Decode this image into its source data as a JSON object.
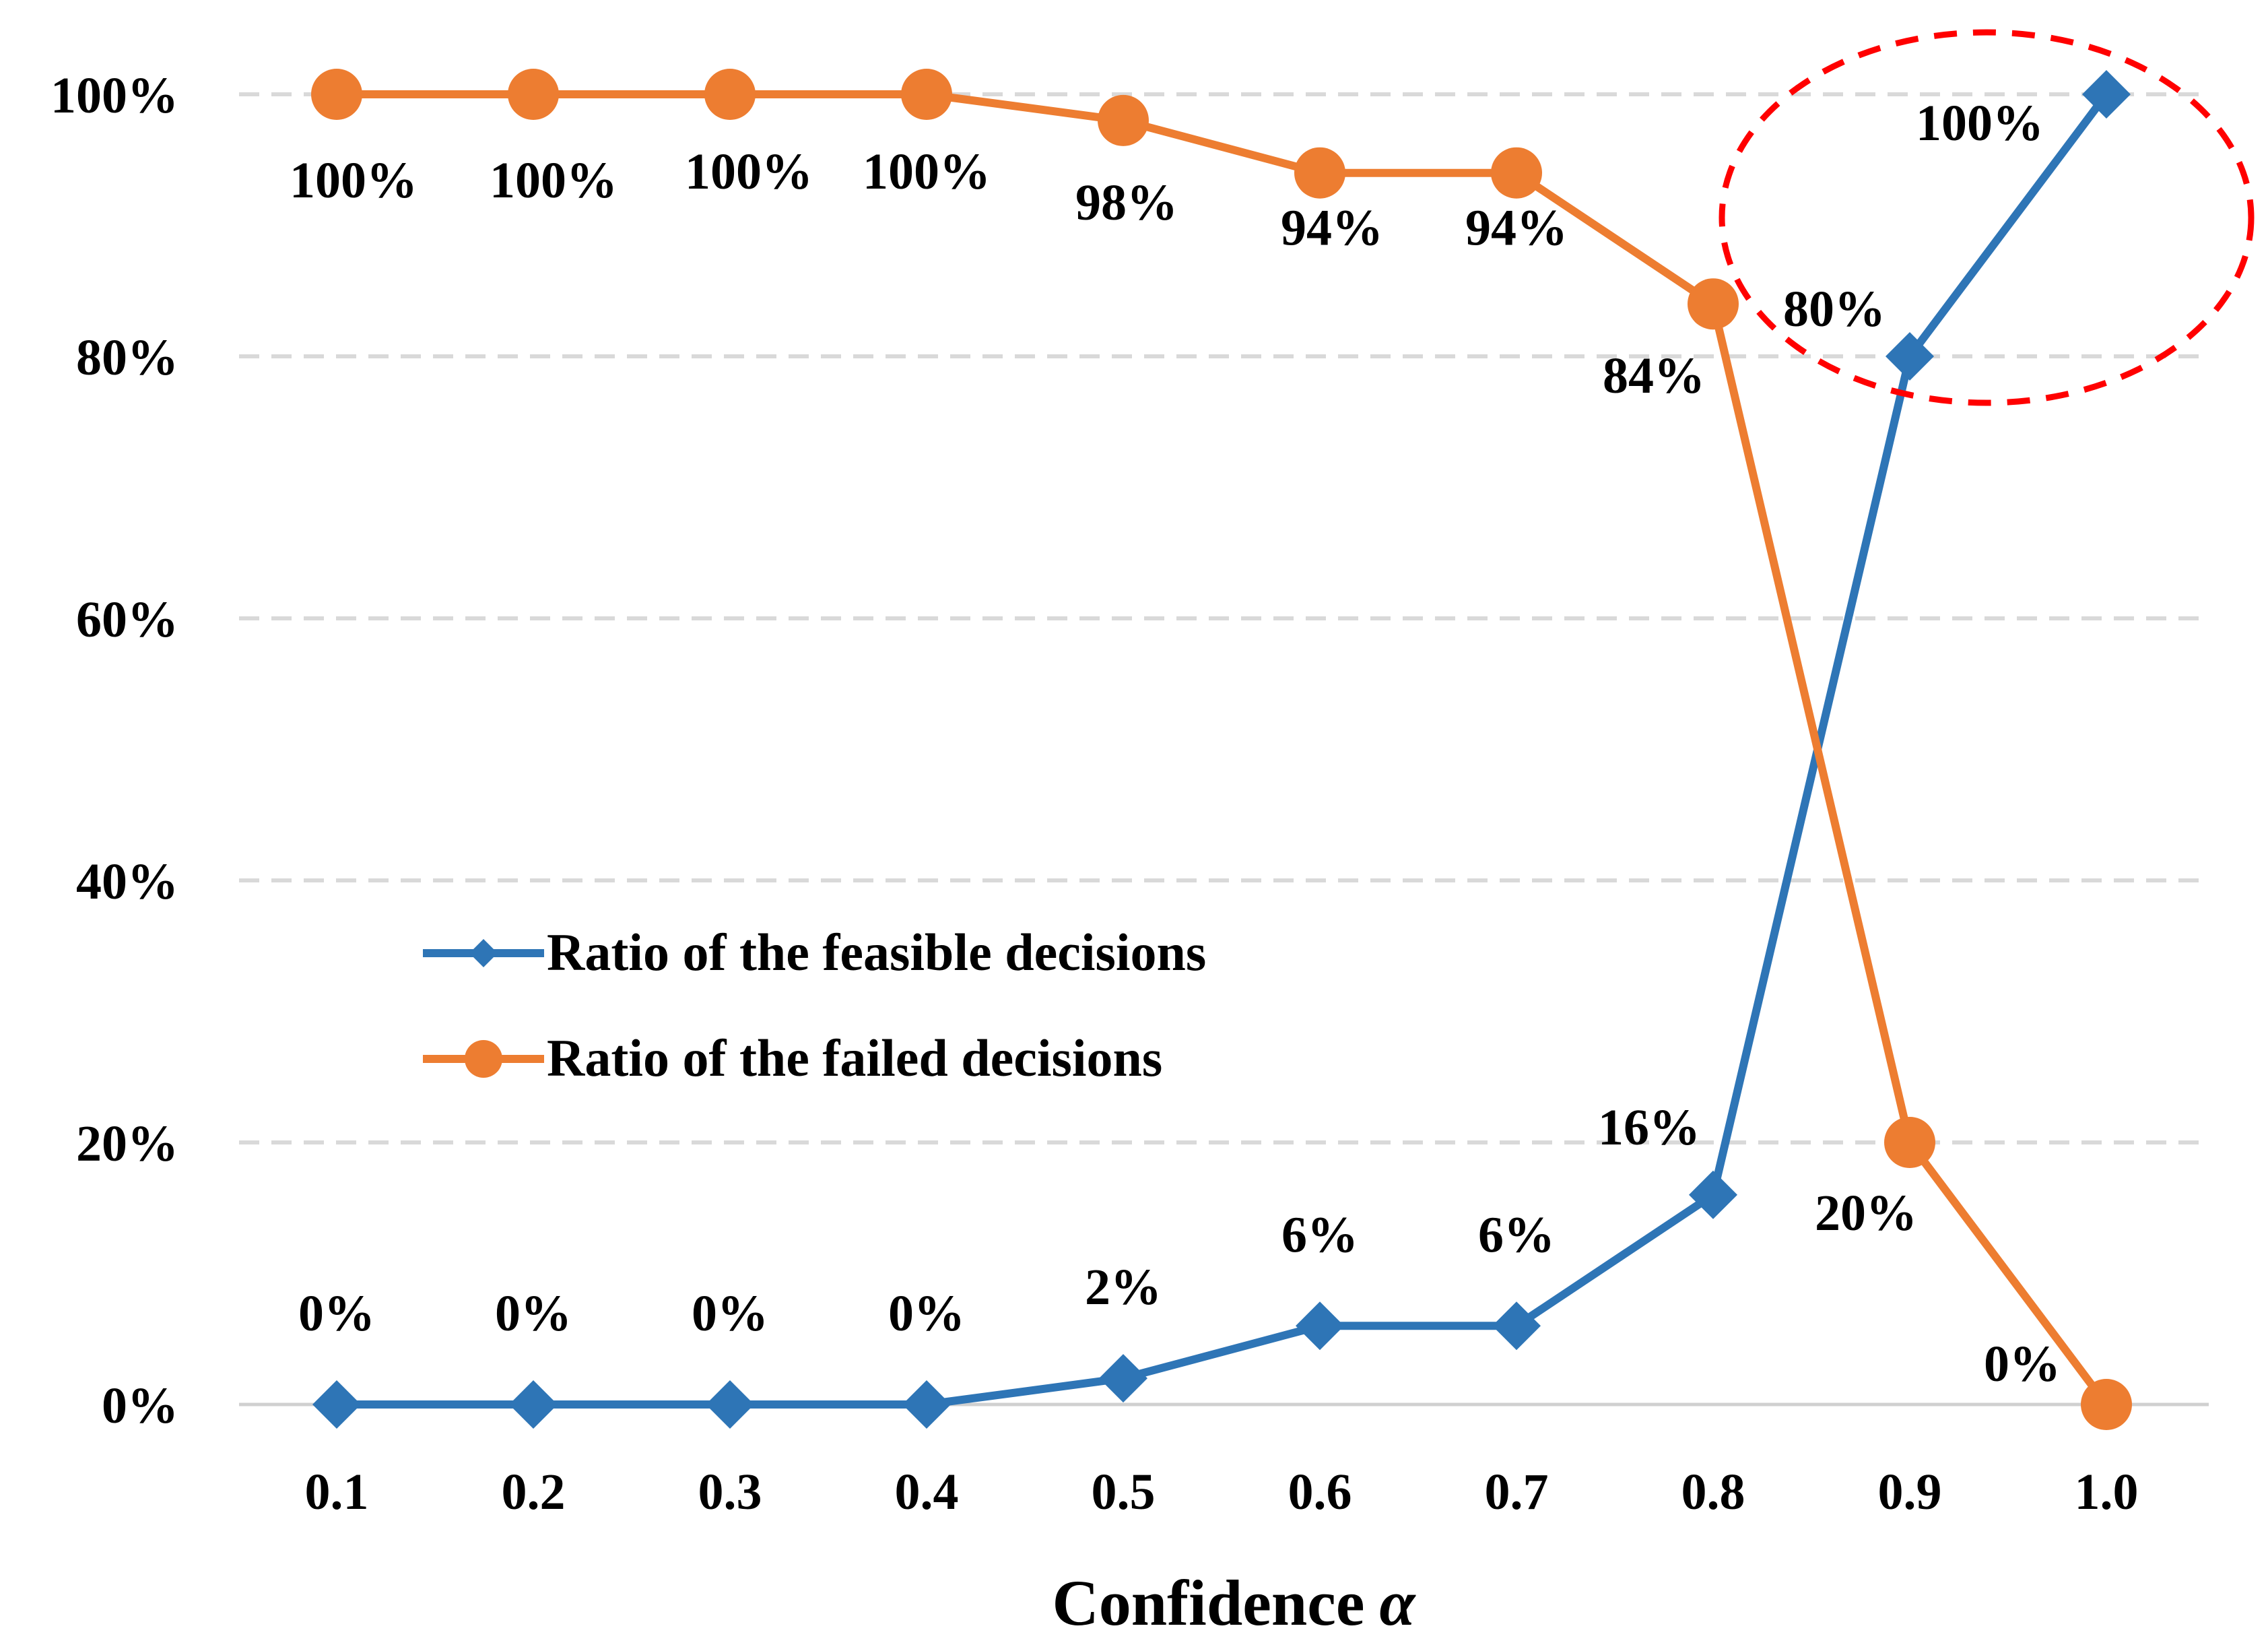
{
  "chart_data": {
    "type": "line",
    "categories": [
      "0.1",
      "0.2",
      "0.3",
      "0.4",
      "0.5",
      "0.6",
      "0.7",
      "0.8",
      "0.9",
      "1.0"
    ],
    "series": [
      {
        "name": "Ratio of the feasible decisions",
        "color": "#2E75B6",
        "marker": "diamond",
        "values": [
          0,
          0,
          0,
          0,
          2,
          6,
          6,
          16,
          80,
          100
        ],
        "labels": [
          "0%",
          "0%",
          "0%",
          "0%",
          "2%",
          "6%",
          "6%",
          "16%",
          "80%",
          "100%"
        ]
      },
      {
        "name": "Ratio of the failed decisions",
        "color": "#ED7D31",
        "marker": "circle",
        "values": [
          100,
          100,
          100,
          100,
          98,
          94,
          94,
          84,
          20,
          0
        ],
        "labels": [
          "100%",
          "100%",
          "100%",
          "100%",
          "98%",
          "94%",
          "94%",
          "84%",
          "20%",
          "0%"
        ]
      }
    ],
    "yticks": [
      "0%",
      "20%",
      "40%",
      "60%",
      "80%",
      "100%"
    ],
    "ylim": [
      0,
      100
    ],
    "xlabel": "Confidence",
    "xlabel_symbol": "α",
    "ylabel": "",
    "grid": true,
    "legend_position": "center-left",
    "annotation": {
      "type": "dashed-ellipse",
      "color": "#FF0000",
      "highlights": "x = 0.9 to 1.0 of the feasible decisions series"
    }
  }
}
